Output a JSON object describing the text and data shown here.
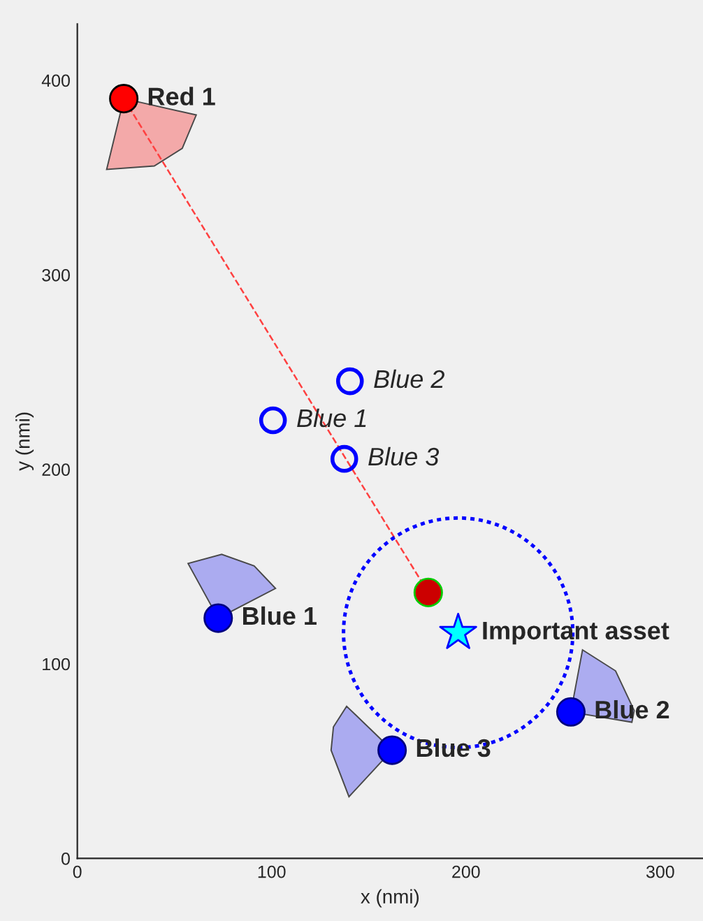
{
  "chart_data": {
    "type": "scatter",
    "xlabel": "x (nmi)",
    "ylabel": "y (nmi)",
    "xlim": [
      0,
      322
    ],
    "ylim": [
      0,
      429
    ],
    "xticks": [
      0,
      100,
      200,
      300
    ],
    "yticks": [
      0,
      100,
      200,
      300,
      400
    ],
    "grid": false,
    "legend": false,
    "series": [
      {
        "type": "area",
        "color": "#f4a6a6",
        "x": [
          30.7,
          61.2,
          54,
          39.6,
          15.1,
          22.3
        ],
        "values": [
          389.1,
          382.2,
          365,
          356,
          354.2,
          383.8
        ]
      },
      {
        "type": "area",
        "color": "#a8a8f0",
        "x": [
          69.1,
          57,
          74.3,
          91,
          102,
          78.7
        ],
        "values": [
          129.6,
          151.6,
          156.3,
          150.4,
          138.8,
          126.7
        ]
      },
      {
        "type": "area",
        "color": "#a8a8f0",
        "x": [
          157,
          138.6,
          131.8,
          130.6,
          139.8,
          157.2
        ],
        "values": [
          60.5,
          78.2,
          67.6,
          55.6,
          31.7,
          50.5
        ]
      },
      {
        "type": "area",
        "color": "#a8a8f0",
        "x": [
          255.3,
          260,
          277,
          286.6,
          285.4,
          260.9
        ],
        "values": [
          82.2,
          107.2,
          96.4,
          76,
          70,
          74.1
        ]
      },
      {
        "type": "line",
        "color": "#ff4040",
        "line_style": "dashed",
        "x": [
          23.9,
          180.6
        ],
        "values": [
          390.6,
          136.7
        ]
      },
      {
        "name": "Red 1",
        "color": "#000000",
        "colors": [
          "#ff0000"
        ],
        "marker": "circle",
        "x": [
          23.9
        ],
        "values": [
          390.6
        ]
      },
      {
        "color": "#00cc00",
        "colors": [
          "#cc0000"
        ],
        "marker": "circle",
        "x": [
          180.6
        ],
        "values": [
          136.7
        ]
      },
      {
        "name": "Important asset",
        "color": "#0000ff",
        "colors": [
          "#00ffff"
        ],
        "marker": "star",
        "x": [
          196
        ],
        "values": [
          116
        ]
      },
      {
        "name": "Blue 1",
        "color": "#000080",
        "colors": [
          "#0000ff"
        ],
        "marker": "circle",
        "x": [
          72.5
        ],
        "values": [
          123.5
        ]
      },
      {
        "name": "Blue 2",
        "color": "#000080",
        "colors": [
          "#0000ff"
        ],
        "marker": "circle",
        "x": [
          254
        ],
        "values": [
          75.3
        ]
      },
      {
        "name": "Blue 3",
        "color": "#000080",
        "colors": [
          "#0000ff"
        ],
        "marker": "circle",
        "x": [
          162
        ],
        "values": [
          55.6
        ]
      },
      {
        "name": "Blue 1",
        "color": "#0000ff",
        "marker": "circle",
        "x": [
          100.7
        ],
        "values": [
          225.2
        ]
      },
      {
        "name": "Blue 2",
        "color": "#0000ff",
        "marker": "circle",
        "x": [
          140.3
        ],
        "values": [
          245.3
        ]
      },
      {
        "name": "Blue 3",
        "color": "#0000ff",
        "marker": "circle",
        "x": [
          137.4
        ],
        "values": [
          205.4
        ]
      }
    ]
  }
}
